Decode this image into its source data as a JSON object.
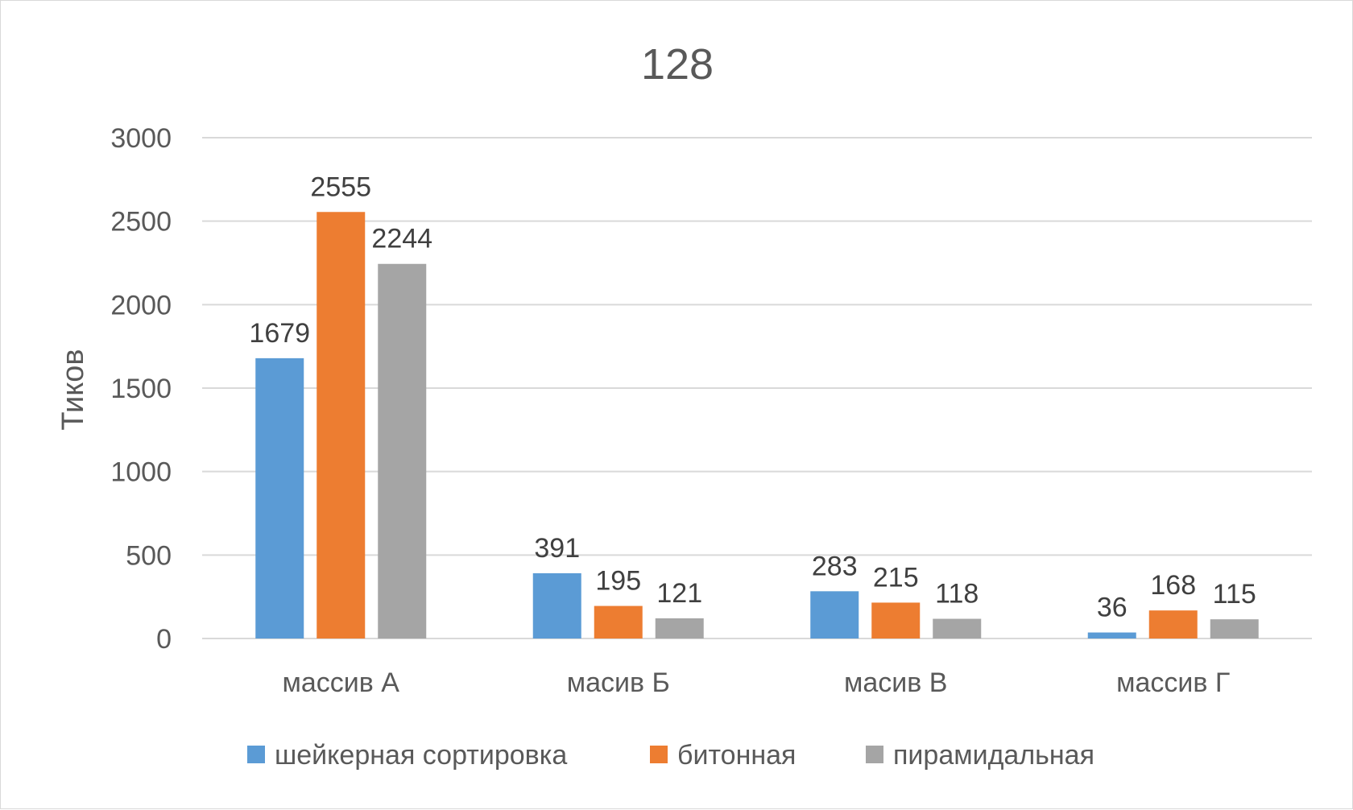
{
  "chart_data": {
    "type": "bar",
    "title": "128",
    "xlabel": "",
    "ylabel": "Тиков",
    "categories": [
      "массив А",
      "масив Б",
      "масив В",
      "массив Г"
    ],
    "series": [
      {
        "name": "шейкерная сортировка",
        "color": "#5b9bd5",
        "values": [
          1679,
          391,
          283,
          36
        ]
      },
      {
        "name": "битонная",
        "color": "#ed7d31",
        "values": [
          2555,
          195,
          215,
          168
        ]
      },
      {
        "name": "пирамидальная",
        "color": "#a5a5a5",
        "values": [
          2244,
          121,
          118,
          115
        ]
      }
    ],
    "ylim": [
      0,
      3000
    ],
    "yticks": [
      0,
      500,
      1000,
      1500,
      2000,
      2500,
      3000
    ],
    "grid": true,
    "legend_position": "bottom",
    "data_labels": true
  }
}
